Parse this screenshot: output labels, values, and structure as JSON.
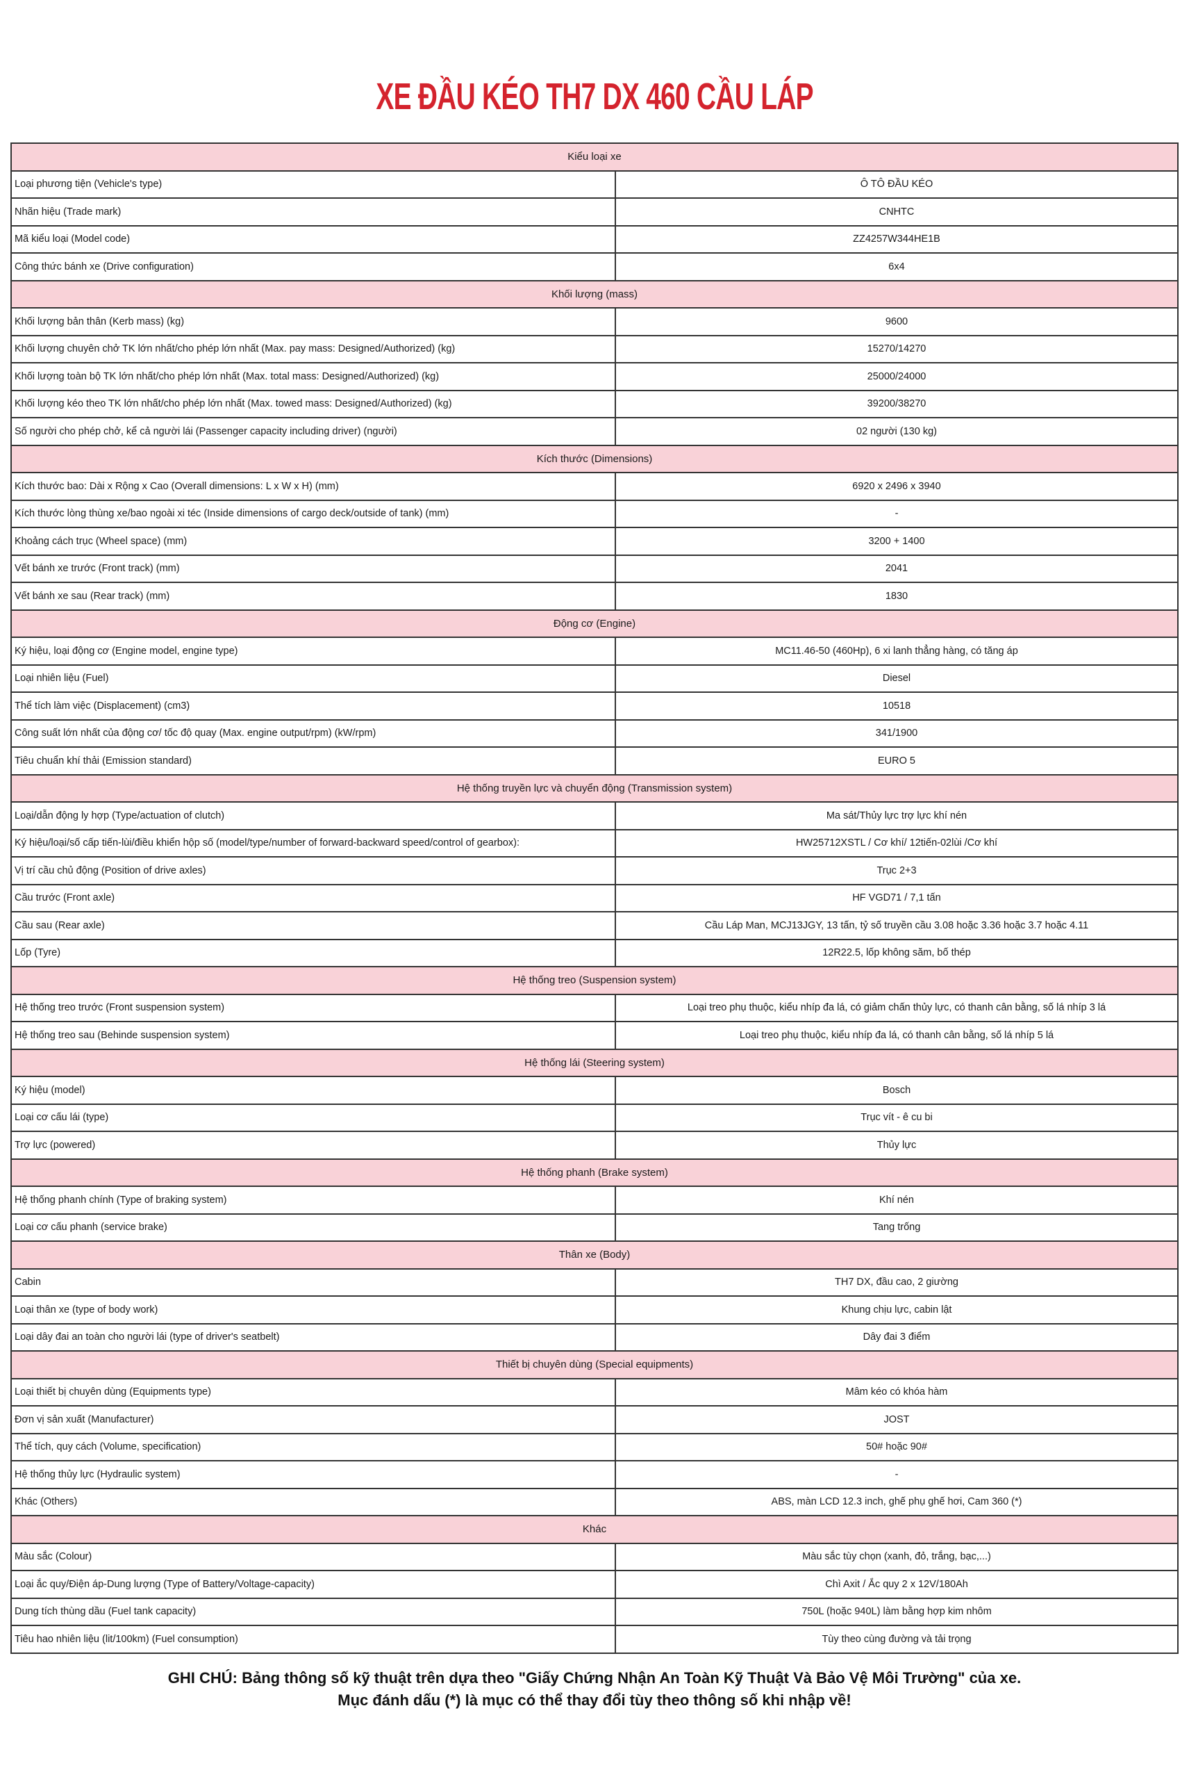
{
  "title": "XE ĐẦU KÉO TH7 DX 460 CẦU LÁP",
  "colors": {
    "title": "#d4232d",
    "section_bg": "#f9d2d8",
    "border": "#333333"
  },
  "sections": [
    {
      "heading": "Kiểu loại xe",
      "rows": [
        {
          "label": "Loại phương tiện (Vehicle's type)",
          "value": "Ô TÔ ĐẦU KÉO"
        },
        {
          "label": "Nhãn hiệu (Trade mark)",
          "value": "CNHTC"
        },
        {
          "label": "Mã kiểu loại (Model code)",
          "value": "ZZ4257W344HE1B"
        },
        {
          "label": "Công thức bánh xe (Drive configuration)",
          "value": "6x4"
        }
      ]
    },
    {
      "heading": "Khối lượng (mass)",
      "rows": [
        {
          "label": "Khối lượng bản thân (Kerb mass) (kg)",
          "value": "9600"
        },
        {
          "label": "Khối lượng chuyên chở TK lớn nhất/cho phép lớn nhất (Max. pay mass: Designed/Authorized) (kg)",
          "value": "15270/14270"
        },
        {
          "label": "Khối lượng toàn bộ TK lớn nhất/cho phép lớn nhất (Max. total mass: Designed/Authorized) (kg)",
          "value": "25000/24000"
        },
        {
          "label": "Khối lượng kéo theo TK lớn nhất/cho phép lớn nhất (Max. towed mass: Designed/Authorized) (kg)",
          "value": "39200/38270"
        },
        {
          "label": "Số người cho phép chở, kể cả người lái (Passenger capacity including driver) (người)",
          "value": "02 người (130 kg)"
        }
      ]
    },
    {
      "heading": "Kích thước (Dimensions)",
      "rows": [
        {
          "label": "Kích thước bao: Dài x Rộng x Cao (Overall dimensions: L x W x H) (mm)",
          "value": "6920 x 2496 x 3940"
        },
        {
          "label": "Kích thước lòng thùng xe/bao ngoài xi téc (Inside dimensions of cargo deck/outside of tank) (mm)",
          "value": "-"
        },
        {
          "label": "Khoảng cách trục (Wheel space) (mm)",
          "value": "3200 + 1400"
        },
        {
          "label": "Vết bánh xe trước (Front track) (mm)",
          "value": "2041"
        },
        {
          "label": "Vết bánh xe sau (Rear track) (mm)",
          "value": "1830"
        }
      ]
    },
    {
      "heading": "Động cơ (Engine)",
      "rows": [
        {
          "label": "Ký hiệu, loại động cơ (Engine model, engine type)",
          "value": "MC11.46-50 (460Hp), 6 xi lanh thẳng hàng, có tăng áp"
        },
        {
          "label": "Loại nhiên liệu (Fuel)",
          "value": "Diesel"
        },
        {
          "label": "Thể tích làm việc (Displacement) (cm3)",
          "value": "10518"
        },
        {
          "label": "Công suất lớn nhất của động cơ/ tốc độ quay (Max. engine output/rpm) (kW/rpm)",
          "value": "341/1900"
        },
        {
          "label": "Tiêu chuẩn khí thải (Emission standard)",
          "value": "EURO 5"
        }
      ]
    },
    {
      "heading": "Hệ thống truyền lực và chuyển động (Transmission system)",
      "rows": [
        {
          "label": "Loại/dẫn động ly hợp (Type/actuation of clutch)",
          "value": "Ma sát/Thủy lực trợ lực khí nén"
        },
        {
          "label": "Ký hiệu/loại/số cấp tiến-lùi/điều khiển hộp số (model/type/number of forward-backward speed/control of  gearbox):",
          "value": "HW25712XSTL / Cơ khí/ 12tiến-02lùi /Cơ khí"
        },
        {
          "label": "Vị trí cầu chủ động (Position of drive axles)",
          "value": "Trục 2+3"
        },
        {
          "label": "Cầu trước (Front axle)",
          "value": "HF VGD71 / 7,1 tấn"
        },
        {
          "label": "Cầu sau (Rear axle)",
          "value": "Cầu Láp Man, MCJ13JGY, 13 tấn, tỷ số truyền cầu  3.08 hoặc 3.36 hoặc 3.7 hoặc 4.11"
        },
        {
          "label": "Lốp (Tyre)",
          "value": "12R22.5, lốp không săm, bố thép"
        }
      ]
    },
    {
      "heading": "Hệ thống treo (Suspension system)",
      "rows": [
        {
          "label": "Hệ thống treo trước (Front suspension system)",
          "value": "Loại treo phụ thuộc, kiểu nhíp đa lá, có giảm chấn thủy lực, có thanh cân bằng, số lá nhíp 3 lá"
        },
        {
          "label": "Hệ thống treo sau (Behinde suspension system)",
          "value": "Loại treo phụ thuộc, kiểu nhíp đa lá, có thanh cân bằng, số lá nhíp 5 lá"
        }
      ]
    },
    {
      "heading": "Hệ thống lái (Steering system)",
      "rows": [
        {
          "label": "Ký hiệu (model)",
          "value": "Bosch"
        },
        {
          "label": "Loại cơ cấu lái (type)",
          "value": "Trục vít - ê cu bi"
        },
        {
          "label": "Trợ lực (powered)",
          "value": "Thủy lực"
        }
      ]
    },
    {
      "heading": "Hệ thống phanh (Brake system)",
      "rows": [
        {
          "label": "Hệ thống phanh chính (Type of braking system)",
          "value": "Khí nén"
        },
        {
          "label": "Loại cơ cấu phanh (service brake)",
          "value": "Tang trống"
        }
      ]
    },
    {
      "heading": "Thân xe (Body)",
      "rows": [
        {
          "label": "Cabin",
          "value": "TH7 DX, đầu cao, 2 giường"
        },
        {
          "label": "Loại thân xe (type of body work)",
          "value": "Khung chịu lực,  cabin lật"
        },
        {
          "label": "Loại dây đai an toàn cho người lái (type of driver's seatbelt)",
          "value": "Dây đai 3 điểm"
        }
      ]
    },
    {
      "heading": "Thiết bị chuyên dùng (Special equipments)",
      "rows": [
        {
          "label": "Loại thiết bị chuyên dùng (Equipments type)",
          "value": "Mâm kéo có khóa hàm"
        },
        {
          "label": "Đơn vị sản xuất (Manufacturer)",
          "value": "JOST"
        },
        {
          "label": "Thể tích, quy cách (Volume, specification)",
          "value": "50# hoặc 90#"
        },
        {
          "label": "Hệ thống thủy lực (Hydraulic system)",
          "value": "-"
        },
        {
          "label": "Khác (Others)",
          "value": "ABS, màn LCD 12.3 inch, ghế phụ ghế hơi, Cam 360 (*)"
        }
      ]
    },
    {
      "heading": "Khác",
      "rows": [
        {
          "label": "Màu sắc (Colour)",
          "value": "Màu sắc tùy chọn (xanh, đỏ, trắng, bạc,...)"
        },
        {
          "label": "Loại ắc quy/Điện áp-Dung lượng (Type of Battery/Voltage-capacity)",
          "value": "Chì Axit / Ắc quy 2 x 12V/180Ah"
        },
        {
          "label": "Dung tích thùng dầu (Fuel tank capacity)",
          "value": "750L (hoặc 940L)  làm bằng hợp kim nhôm"
        },
        {
          "label": "Tiêu hao nhiên liệu (lit/100km) (Fuel consumption)",
          "value": "Tùy theo cùng đường và tải trọng"
        }
      ]
    }
  ],
  "notes": {
    "line1": "GHI CHÚ: Bảng thông số kỹ thuật trên dựa theo \"Giấy Chứng Nhận An Toàn Kỹ Thuật Và Bảo Vệ Môi Trường\" của xe.",
    "line2": "Mục đánh dấu (*) là mục có thể thay đổi tùy theo thông số khi nhập về!"
  }
}
